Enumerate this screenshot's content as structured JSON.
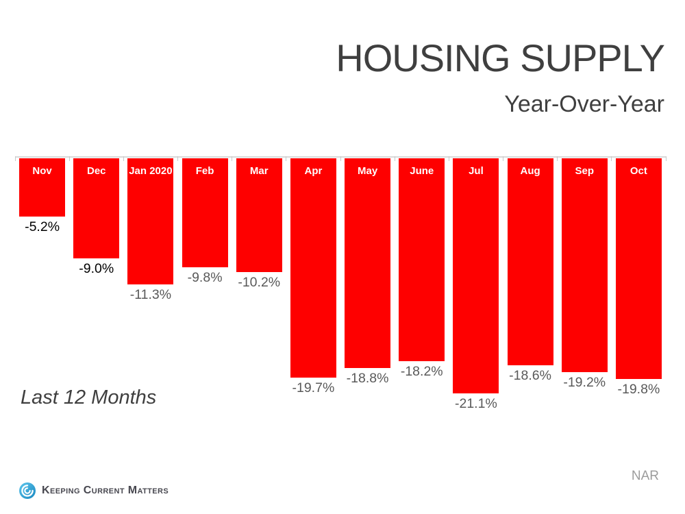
{
  "footnote": "Last 12 Months",
  "source": "NAR",
  "logo": {
    "brand": "Keeping Current Matters",
    "icon": "kcm-swirl-icon"
  },
  "colors": {
    "bar_red": "#fe0000",
    "axis_gray": "#d9d9d9",
    "title_gray": "#3f3f3f",
    "value_gray": "#595959",
    "value_black": "#000000",
    "month_white": "#ffffff",
    "source_gray": "#9c9c9c",
    "logo_blue": "#2ba9e0",
    "logo_text": "#47474f"
  },
  "chart_data": {
    "type": "bar",
    "title": "HOUSING SUPPLY",
    "subtitle": "Year-Over-Year",
    "categories": [
      "Nov",
      "Dec",
      "Jan 2020",
      "Feb",
      "Mar",
      "Apr",
      "May",
      "June",
      "Jul",
      "Aug",
      "Sep",
      "Oct"
    ],
    "values": [
      -5.2,
      -9.0,
      -11.3,
      -9.8,
      -10.2,
      -19.7,
      -18.8,
      -18.2,
      -21.1,
      -18.6,
      -19.2,
      -19.8
    ],
    "value_labels": [
      "-5.2%",
      "-9.0%",
      "-11.3%",
      "-9.8%",
      "-10.2%",
      "-19.7%",
      "-18.8%",
      "-18.2%",
      "-21.1%",
      "-18.6%",
      "-19.2%",
      "-19.8%"
    ],
    "value_label_colors": [
      "#000000",
      "#000000",
      "#595959",
      "#595959",
      "#595959",
      "#595959",
      "#595959",
      "#595959",
      "#595959",
      "#595959",
      "#595959",
      "#595959"
    ],
    "xlabel": "",
    "ylabel": "",
    "ylim": [
      -21.1,
      0
    ],
    "axis_position": "top",
    "grid": false,
    "legend": false,
    "bar_color": "#fe0000",
    "category_labels_inside_bars": true
  }
}
